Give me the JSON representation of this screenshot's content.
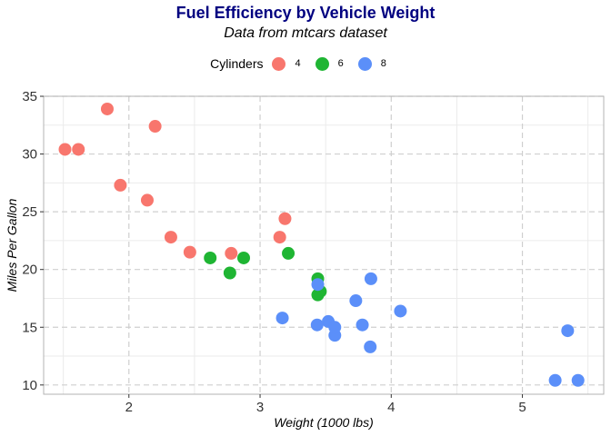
{
  "chart_data": {
    "type": "scatter",
    "title": "Fuel Efficiency by Vehicle Weight",
    "subtitle": "Data from mtcars dataset",
    "xlabel": "Weight (1000 lbs)",
    "ylabel": "Miles Per Gallon",
    "xlim": [
      1.35,
      5.62
    ],
    "ylim": [
      9.2,
      35.0
    ],
    "xticks": [
      2,
      3,
      4,
      5
    ],
    "yticks": [
      10,
      15,
      20,
      25,
      30,
      35
    ],
    "grid": true,
    "legend": {
      "title": "Cylinders",
      "position": "top",
      "entries": [
        {
          "label": "4",
          "color": "#F8766D"
        },
        {
          "label": "6",
          "color": "#1FB533"
        },
        {
          "label": "8",
          "color": "#5B8FF9"
        }
      ]
    },
    "series": [
      {
        "name": "4",
        "color": "#F8766D",
        "points": [
          [
            2.32,
            22.8
          ],
          [
            3.19,
            24.4
          ],
          [
            3.15,
            22.8
          ],
          [
            2.2,
            32.4
          ],
          [
            1.615,
            30.4
          ],
          [
            1.835,
            33.9
          ],
          [
            2.465,
            21.5
          ],
          [
            1.935,
            27.3
          ],
          [
            2.14,
            26.0
          ],
          [
            1.513,
            30.4
          ],
          [
            2.78,
            21.4
          ]
        ]
      },
      {
        "name": "6",
        "color": "#1FB533",
        "points": [
          [
            2.62,
            21.0
          ],
          [
            2.875,
            21.0
          ],
          [
            3.215,
            21.4
          ],
          [
            3.46,
            18.1
          ],
          [
            3.44,
            19.2
          ],
          [
            3.44,
            17.8
          ],
          [
            2.77,
            19.7
          ]
        ]
      },
      {
        "name": "8",
        "color": "#5B8FF9",
        "points": [
          [
            3.44,
            18.7
          ],
          [
            3.57,
            14.3
          ],
          [
            4.07,
            16.4
          ],
          [
            3.73,
            17.3
          ],
          [
            3.78,
            15.2
          ],
          [
            5.25,
            10.4
          ],
          [
            5.424,
            10.4
          ],
          [
            5.345,
            14.7
          ],
          [
            3.52,
            15.5
          ],
          [
            3.435,
            15.2
          ],
          [
            3.84,
            13.3
          ],
          [
            3.845,
            19.2
          ],
          [
            3.17,
            15.8
          ],
          [
            3.57,
            15.0
          ]
        ]
      }
    ]
  }
}
